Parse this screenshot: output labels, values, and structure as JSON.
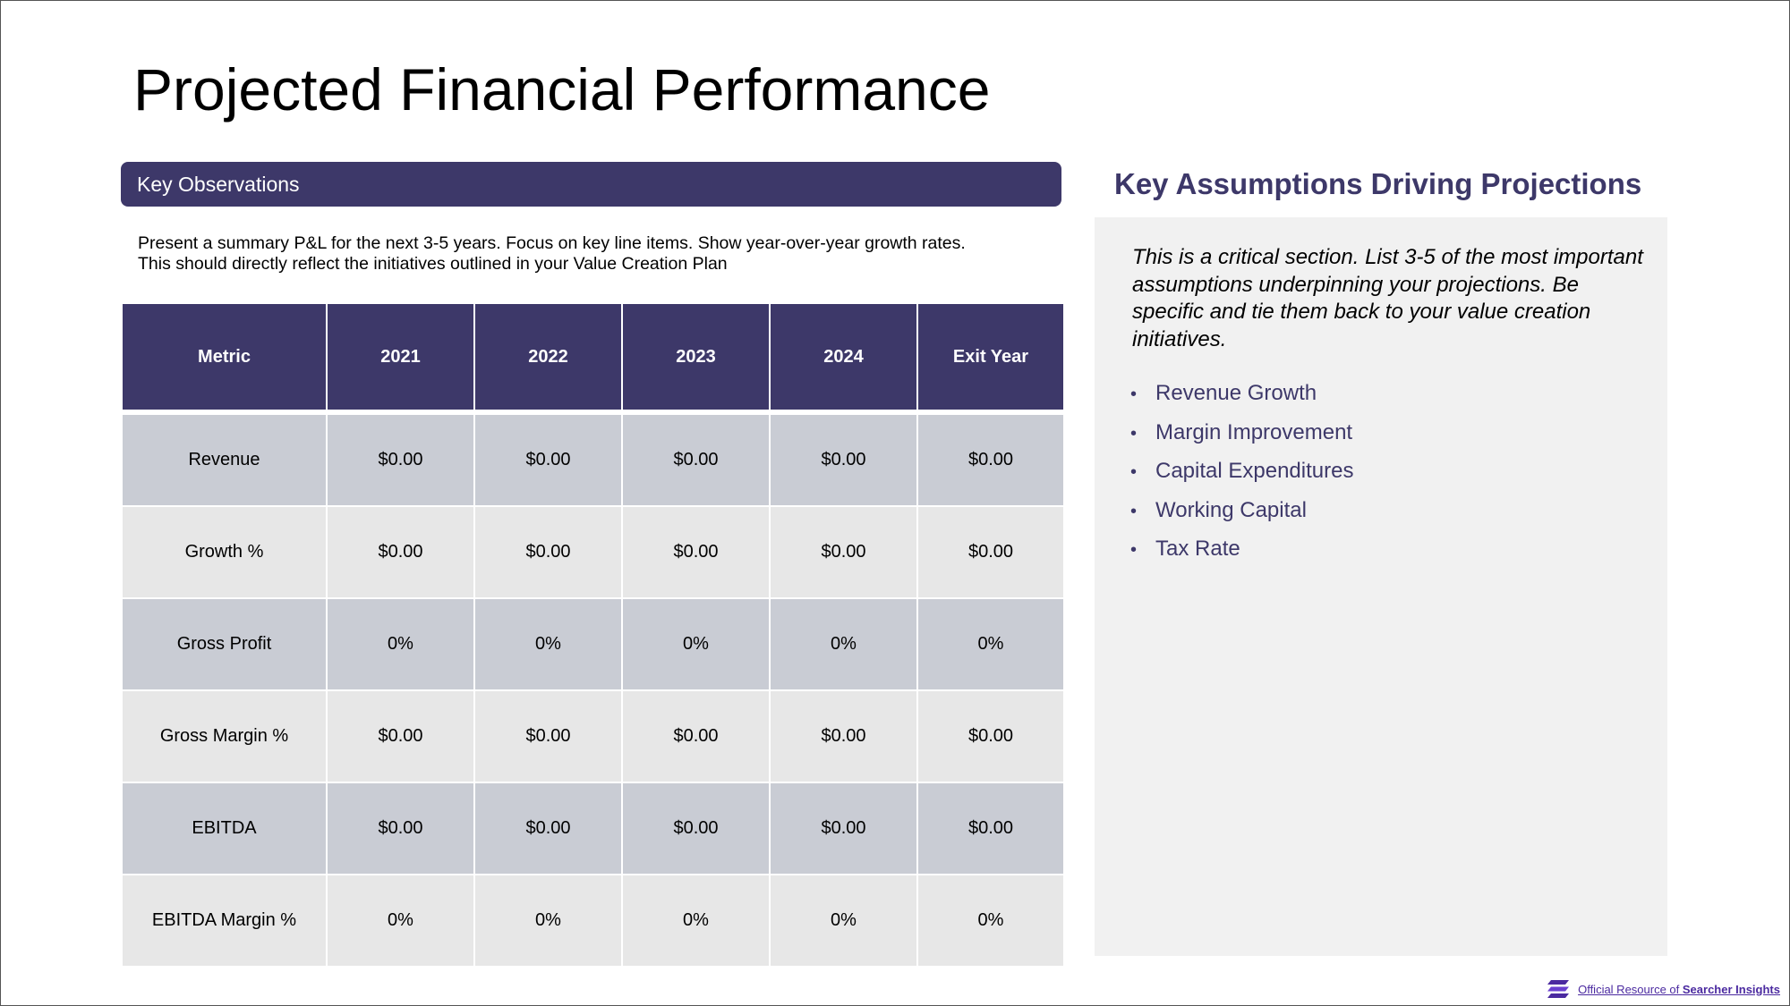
{
  "title": "Projected Financial Performance",
  "observations": {
    "header": "Key Observations",
    "text_line1": "Present a summary P&L for the next 3-5 years. Focus on key line items. Show year-over-year growth rates.",
    "text_line2": "This should directly reflect the initiatives outlined in your Value Creation Plan"
  },
  "table": {
    "headers": [
      "Metric",
      "2021",
      "2022",
      "2023",
      "2024",
      "Exit Year"
    ],
    "rows": [
      [
        "Revenue",
        "$0.00",
        "$0.00",
        "$0.00",
        "$0.00",
        "$0.00"
      ],
      [
        "Growth %",
        "$0.00",
        "$0.00",
        "$0.00",
        "$0.00",
        "$0.00"
      ],
      [
        "Gross Profit",
        "0%",
        "0%",
        "0%",
        "0%",
        "0%"
      ],
      [
        "Gross Margin %",
        "$0.00",
        "$0.00",
        "$0.00",
        "$0.00",
        "$0.00"
      ],
      [
        "EBITDA",
        "$0.00",
        "$0.00",
        "$0.00",
        "$0.00",
        "$0.00"
      ],
      [
        "EBITDA Margin %",
        "0%",
        "0%",
        "0%",
        "0%",
        "0%"
      ]
    ]
  },
  "assumptions": {
    "title": "Key Assumptions Driving Projections",
    "intro": "This is a critical section. List 3-5 of the most important assumptions underpinning your projections. Be specific and tie them back to your value creation initiatives.",
    "bullet_glyph": "•",
    "items": [
      "Revenue Growth",
      "Margin Improvement",
      "Capital Expenditures",
      "Working Capital",
      "Tax Rate"
    ]
  },
  "footer": {
    "prefix": "Official Resource of ",
    "brand": "Searcher Insights",
    "logo_icon": "searcher-insights-logo-icon",
    "accent_color": "#4b2aa0"
  },
  "colors": {
    "primary": "#3d3869",
    "row_dark": "#c9ccd4",
    "row_light": "#e7e7e7",
    "panel": "#f1f1f1"
  }
}
